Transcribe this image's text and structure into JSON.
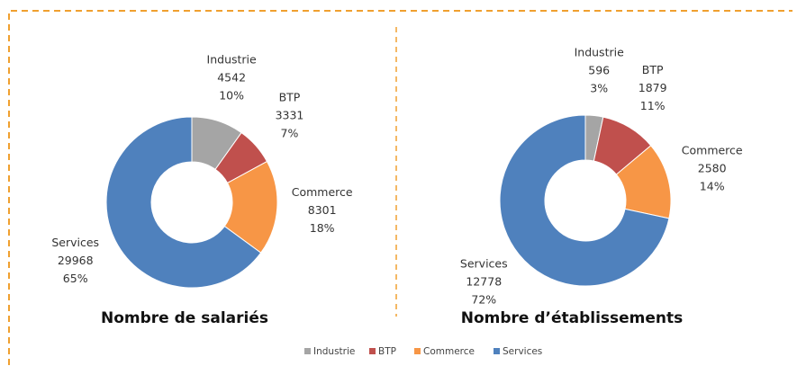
{
  "chart_data": [
    {
      "type": "donut",
      "title": "Nombre de salariés",
      "categories": [
        "Industrie",
        "BTP",
        "Commerce",
        "Services"
      ],
      "values": [
        4542,
        3331,
        8301,
        29968
      ],
      "percent_labels": [
        "10%",
        "7%",
        "18%",
        "65%"
      ],
      "colors": [
        "#a5a5a5",
        "#c0504d",
        "#f79646",
        "#4f81bd"
      ]
    },
    {
      "type": "donut",
      "title": "Nombre d’établissements",
      "categories": [
        "Industrie",
        "BTP",
        "Commerce",
        "Services"
      ],
      "values": [
        596,
        1879,
        2580,
        12778
      ],
      "percent_labels": [
        "3%",
        "11%",
        "14%",
        "72%"
      ],
      "colors": [
        "#a5a5a5",
        "#c0504d",
        "#f79646",
        "#4f81bd"
      ]
    }
  ]
}
